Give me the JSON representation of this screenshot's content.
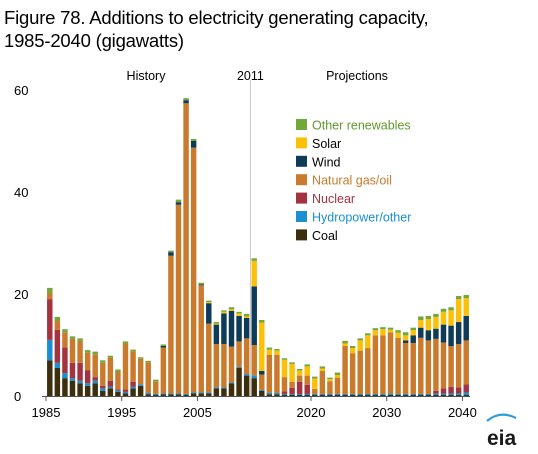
{
  "chart_data": {
    "type": "bar",
    "stacked": true,
    "title_line1": "Figure 78. Additions to electricity generating capacity,",
    "title_line2": "1985-2040 (gigawatts)",
    "xlabel": "",
    "ylabel": "",
    "ylim": [
      0,
      60
    ],
    "xlim": [
      1985,
      2040
    ],
    "y_ticks": [
      0,
      20,
      40,
      60
    ],
    "x_ticks": [
      1985,
      1995,
      2005,
      2020,
      2030,
      2040
    ],
    "grid": false,
    "legend_position": "top-right",
    "annotations": {
      "history": "History",
      "divider_year": "2011",
      "projections": "Projections"
    },
    "logo": "eia",
    "x": [
      1985,
      1986,
      1987,
      1988,
      1989,
      1990,
      1991,
      1992,
      1993,
      1994,
      1995,
      1996,
      1997,
      1998,
      1999,
      2000,
      2001,
      2002,
      2003,
      2004,
      2005,
      2006,
      2007,
      2008,
      2009,
      2010,
      2011,
      2012,
      2013,
      2014,
      2015,
      2016,
      2017,
      2018,
      2019,
      2020,
      2021,
      2022,
      2023,
      2024,
      2025,
      2026,
      2027,
      2028,
      2029,
      2030,
      2031,
      2032,
      2033,
      2034,
      2035,
      2036,
      2037,
      2038,
      2039,
      2040
    ],
    "series": [
      {
        "name": "Coal",
        "color": "#3d2f0d",
        "values": [
          7.0,
          5.5,
          3.5,
          3.0,
          2.5,
          2.0,
          2.5,
          1.0,
          1.5,
          0.8,
          0.5,
          1.5,
          2.0,
          0.3,
          0.2,
          0.3,
          0.3,
          0.3,
          0.2,
          0.5,
          0.5,
          0.5,
          1.5,
          1.5,
          2.5,
          5.5,
          4.0,
          3.5,
          1.0,
          0.3,
          0.3,
          0.2,
          0.2,
          0.2,
          0.2,
          0.2,
          0.2,
          0.2,
          0.2,
          0.2,
          0.2,
          0.2,
          0.2,
          0.2,
          0.2,
          0.2,
          0.2,
          0.2,
          0.2,
          0.2,
          0.2,
          0.2,
          0.2,
          0.2,
          0.2,
          0.2
        ]
      },
      {
        "name": "Hydropower/other",
        "color": "#1b8fd0",
        "values": [
          4.0,
          1.0,
          1.0,
          0.5,
          0.5,
          0.5,
          0.5,
          0.5,
          0.3,
          0.3,
          0.3,
          0.3,
          0.3,
          0.3,
          0.2,
          0.2,
          0.2,
          0.2,
          0.2,
          0.2,
          0.2,
          0.2,
          0.2,
          0.2,
          0.2,
          0.2,
          0.3,
          0.5,
          0.2,
          0.3,
          0.3,
          0.2,
          0.2,
          0.2,
          0.2,
          0.2,
          0.2,
          0.2,
          0.2,
          0.2,
          0.2,
          0.2,
          0.2,
          0.2,
          0.2,
          0.3,
          0.2,
          0.2,
          0.2,
          0.2,
          0.2,
          0.3,
          0.3,
          0.3,
          0.3,
          0.5
        ]
      },
      {
        "name": "Nuclear",
        "color": "#a33340",
        "values": [
          8.0,
          6.5,
          5.0,
          3.0,
          3.5,
          2.5,
          0.7,
          0.5,
          1.2,
          0.2,
          0.5,
          1.0,
          0,
          0,
          0,
          0,
          0,
          0,
          0,
          0,
          0,
          0,
          0,
          0,
          0,
          0,
          0,
          0,
          0,
          0,
          0,
          0.5,
          1.2,
          2.4,
          1.8,
          0,
          0,
          0,
          0,
          0,
          0,
          0,
          0,
          0,
          0,
          0,
          0,
          0,
          0,
          0,
          0,
          0.5,
          1.0,
          1.3,
          1.2,
          1.6
        ]
      },
      {
        "name": "Natural gas/oil",
        "color": "#c97a2c",
        "values": [
          1.2,
          1.7,
          3.0,
          4.7,
          4.3,
          3.5,
          4.5,
          4.5,
          4.5,
          3.5,
          9.0,
          6.0,
          5.0,
          6.0,
          2.5,
          9.0,
          27.0,
          37.0,
          57.0,
          48.0,
          21.0,
          13.5,
          8.5,
          8.5,
          7.0,
          5.0,
          7.0,
          6.0,
          3.0,
          7.5,
          7.5,
          2.8,
          1.2,
          1.2,
          1.8,
          1.0,
          4.5,
          2.5,
          3.2,
          9.4,
          8.0,
          8.5,
          9.0,
          11.5,
          11.5,
          12.0,
          11.0,
          10.0,
          10.0,
          11.0,
          10.5,
          10.2,
          9.0,
          8.0,
          8.5,
          8.6
        ]
      },
      {
        "name": "Wind",
        "color": "#0e3c58",
        "values": [
          0,
          0,
          0,
          0,
          0,
          0,
          0,
          0,
          0,
          0,
          0,
          0,
          0,
          0,
          0,
          0.3,
          0.7,
          0.5,
          0.6,
          1.3,
          0.2,
          4.0,
          3.8,
          6.0,
          7.0,
          5.0,
          4.0,
          11.5,
          0.7,
          0,
          0,
          0,
          0,
          0,
          0,
          0,
          0,
          0,
          0,
          0,
          0,
          0,
          0,
          0,
          0,
          0,
          0,
          0.5,
          1.5,
          2.0,
          2.0,
          2.0,
          3.5,
          4.0,
          4.3,
          4.8
        ]
      },
      {
        "name": "Solar",
        "color": "#fdc009",
        "values": [
          0,
          0,
          0,
          0,
          0,
          0,
          0,
          0,
          0,
          0,
          0,
          0,
          0,
          0,
          0,
          0,
          0,
          0,
          0,
          0,
          0,
          0.2,
          0.2,
          0.3,
          0.3,
          0.5,
          0.3,
          5.0,
          9.5,
          1.0,
          0.8,
          3.4,
          3.5,
          1.0,
          1.8,
          2.0,
          0.5,
          0.4,
          0.5,
          0.5,
          1.0,
          2.0,
          2.5,
          1.0,
          1.2,
          0.5,
          1.0,
          1.0,
          1.0,
          1.5,
          2.2,
          2.3,
          2.5,
          3.0,
          4.5,
          3.5
        ]
      },
      {
        "name": "Other renewables",
        "color": "#70a83a",
        "values": [
          1.0,
          0.8,
          0.6,
          0.5,
          0.5,
          0.5,
          0.5,
          0.5,
          0.4,
          0.4,
          0.4,
          0.3,
          0.3,
          0.3,
          0.3,
          0.3,
          0.3,
          0.5,
          0.4,
          0.4,
          0.3,
          0.3,
          0.3,
          0.3,
          0.4,
          0.3,
          0.5,
          0.5,
          0.5,
          0.4,
          0.3,
          0.3,
          0.3,
          0.3,
          0.4,
          0.4,
          0.4,
          0.3,
          0.5,
          0.5,
          0.4,
          0.4,
          0.4,
          0.4,
          0.4,
          0.4,
          0.5,
          0.6,
          0.5,
          0.7,
          0.6,
          0.6,
          0.6,
          0.6,
          0.6,
          0.6
        ]
      }
    ]
  }
}
